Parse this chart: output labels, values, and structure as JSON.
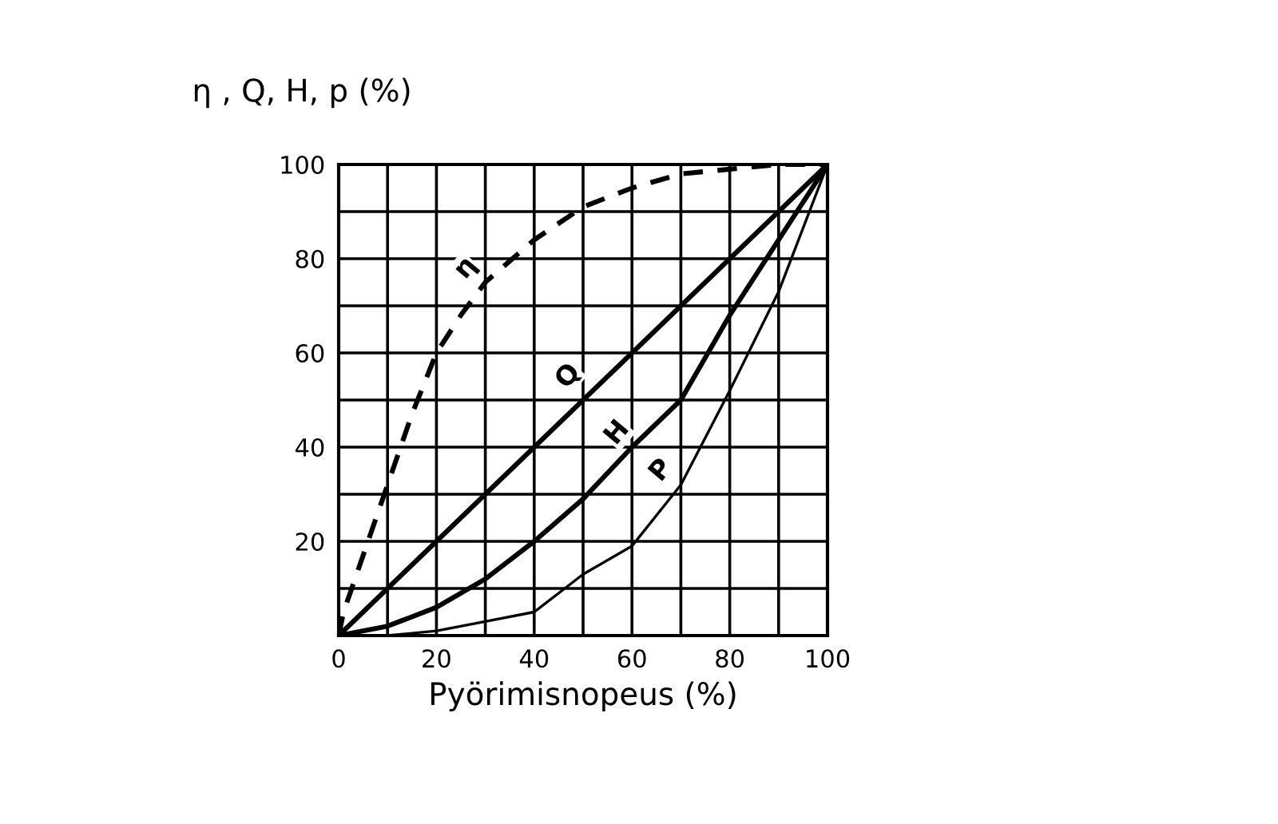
{
  "chart_data": {
    "type": "line",
    "ylabel": "η , Q, H, p (%)",
    "xlabel": "Pyörimisnopeus (%)",
    "xlim": [
      0,
      100
    ],
    "ylim": [
      0,
      100
    ],
    "xticks": [
      0,
      {
        "value": 10,
        "label": null
      },
      20,
      {
        "value": 30,
        "label": null
      },
      40,
      {
        "value": 50,
        "label": null
      },
      60,
      {
        "value": 70,
        "label": null
      },
      80,
      {
        "value": 90,
        "label": null
      },
      100
    ],
    "yticks": [
      {
        "value": 0,
        "label": null
      },
      {
        "value": 10,
        "label": null
      },
      20,
      {
        "value": 30,
        "label": null
      },
      40,
      {
        "value": 50,
        "label": null
      },
      60,
      {
        "value": 70,
        "label": null
      },
      80,
      {
        "value": 90,
        "label": null
      },
      100
    ],
    "grid": true,
    "legend": false,
    "marker": "none",
    "series": [
      {
        "color": "#000000",
        "line_style": "dashed",
        "x": [
          0,
          1,
          5,
          10,
          15,
          20,
          25,
          30,
          40,
          50,
          60,
          70,
          80,
          90,
          100
        ],
        "values": [
          0,
          5,
          17,
          32,
          47,
          60,
          68,
          75,
          84,
          91,
          95,
          98,
          99,
          100,
          100
        ]
      },
      {
        "color": "#000000",
        "line_style": "solid",
        "x": [
          0,
          100
        ],
        "values": [
          0,
          100
        ]
      },
      {
        "color": "#000000",
        "line_style": "solid",
        "x": [
          0,
          10,
          20,
          30,
          40,
          50,
          60,
          70,
          80,
          90,
          100
        ],
        "values": [
          0,
          2,
          6,
          12,
          20,
          29,
          40,
          50,
          68,
          84,
          100
        ]
      },
      {
        "color": "#000000",
        "line_style": "solid",
        "x": [
          0,
          10,
          20,
          30,
          40,
          50,
          60,
          70,
          80,
          90,
          100
        ],
        "values": [
          0,
          0,
          1,
          3,
          5,
          13,
          19,
          32,
          52,
          73,
          100
        ]
      }
    ],
    "annotations": [
      {
        "text": "η",
        "x": 26,
        "y": 78
      },
      {
        "text": "Q",
        "x": 47,
        "y": 55
      },
      {
        "text": "H",
        "x": 57,
        "y": 43
      },
      {
        "text": "P",
        "x": 66,
        "y": 35
      }
    ]
  }
}
